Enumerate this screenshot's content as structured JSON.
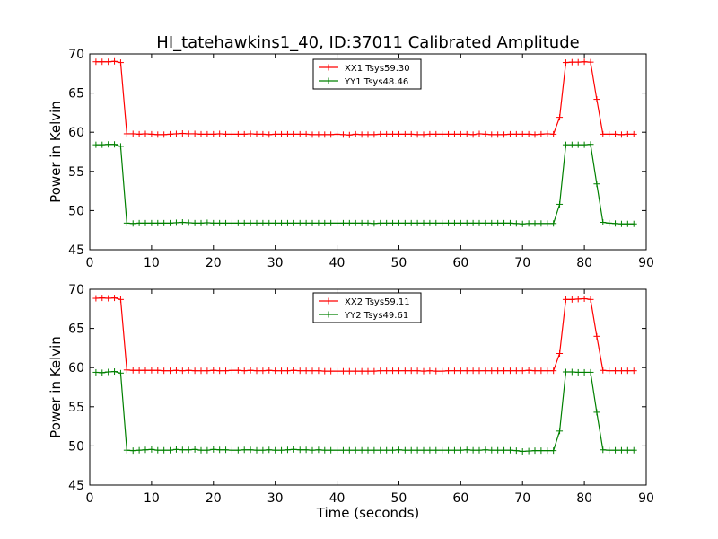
{
  "figure": {
    "title": "HI_tatehawkins1_40, ID:37011 Calibrated Amplitude",
    "xlabel": "Time (seconds)"
  },
  "chart_data": [
    {
      "type": "line",
      "title": "HI_tatehawkins1_40, ID:37011 Calibrated Amplitude",
      "xlabel": "",
      "ylabel": "Power in Kelvin",
      "xlim": [
        0,
        90
      ],
      "ylim": [
        45,
        70
      ],
      "xticks": [
        0,
        10,
        20,
        30,
        40,
        50,
        60,
        70,
        80,
        90
      ],
      "yticks": [
        45,
        50,
        55,
        60,
        65,
        70
      ],
      "grid": false,
      "legend_position": "top-center",
      "marker": "+",
      "x": [
        1,
        2,
        3,
        4,
        5,
        6,
        7,
        8,
        9,
        10,
        11,
        12,
        13,
        14,
        15,
        16,
        17,
        18,
        19,
        20,
        21,
        22,
        23,
        24,
        25,
        26,
        27,
        28,
        29,
        30,
        31,
        32,
        33,
        34,
        35,
        36,
        37,
        38,
        39,
        40,
        41,
        42,
        43,
        44,
        45,
        46,
        47,
        48,
        49,
        50,
        51,
        52,
        53,
        54,
        55,
        56,
        57,
        58,
        59,
        60,
        61,
        62,
        63,
        64,
        65,
        66,
        67,
        68,
        69,
        70,
        71,
        72,
        73,
        74,
        75,
        76,
        77,
        78,
        79,
        80,
        81,
        82,
        83,
        84,
        85,
        86,
        87,
        88
      ],
      "series": [
        {
          "name": "XX1 Tsys59.30",
          "color": "#ff0000",
          "values": [
            69.0,
            69.0,
            69.0,
            69.05,
            68.9,
            59.8,
            59.8,
            59.75,
            59.8,
            59.75,
            59.7,
            59.7,
            59.75,
            59.8,
            59.85,
            59.8,
            59.8,
            59.75,
            59.75,
            59.75,
            59.8,
            59.75,
            59.75,
            59.75,
            59.75,
            59.8,
            59.75,
            59.75,
            59.7,
            59.75,
            59.75,
            59.75,
            59.75,
            59.75,
            59.75,
            59.7,
            59.7,
            59.7,
            59.7,
            59.75,
            59.7,
            59.65,
            59.75,
            59.7,
            59.7,
            59.7,
            59.75,
            59.75,
            59.75,
            59.75,
            59.75,
            59.75,
            59.7,
            59.7,
            59.75,
            59.75,
            59.75,
            59.75,
            59.75,
            59.75,
            59.75,
            59.7,
            59.8,
            59.75,
            59.7,
            59.7,
            59.7,
            59.75,
            59.75,
            59.75,
            59.75,
            59.7,
            59.75,
            59.8,
            59.75,
            61.9,
            68.9,
            68.95,
            68.95,
            69.0,
            68.95,
            64.2,
            59.75,
            59.75,
            59.75,
            59.7,
            59.75,
            59.75
          ]
        },
        {
          "name": "YY1 Tsys48.46",
          "color": "#008000",
          "values": [
            58.4,
            58.4,
            58.45,
            58.45,
            58.2,
            48.4,
            48.35,
            48.4,
            48.4,
            48.4,
            48.4,
            48.4,
            48.4,
            48.45,
            48.5,
            48.45,
            48.4,
            48.4,
            48.45,
            48.4,
            48.4,
            48.4,
            48.4,
            48.4,
            48.4,
            48.4,
            48.4,
            48.4,
            48.4,
            48.4,
            48.4,
            48.4,
            48.4,
            48.4,
            48.4,
            48.4,
            48.4,
            48.4,
            48.4,
            48.4,
            48.4,
            48.4,
            48.4,
            48.4,
            48.4,
            48.35,
            48.4,
            48.4,
            48.4,
            48.4,
            48.4,
            48.4,
            48.4,
            48.4,
            48.4,
            48.4,
            48.4,
            48.4,
            48.4,
            48.4,
            48.4,
            48.4,
            48.4,
            48.4,
            48.4,
            48.4,
            48.4,
            48.4,
            48.35,
            48.3,
            48.35,
            48.35,
            48.35,
            48.35,
            48.35,
            50.8,
            58.4,
            58.4,
            58.4,
            58.4,
            58.45,
            53.4,
            48.5,
            48.4,
            48.35,
            48.3,
            48.3,
            48.3
          ]
        }
      ]
    },
    {
      "type": "line",
      "title": "",
      "xlabel": "Time (seconds)",
      "ylabel": "Power in Kelvin",
      "xlim": [
        0,
        90
      ],
      "ylim": [
        45,
        70
      ],
      "xticks": [
        0,
        10,
        20,
        30,
        40,
        50,
        60,
        70,
        80,
        90
      ],
      "yticks": [
        45,
        50,
        55,
        60,
        65,
        70
      ],
      "grid": false,
      "legend_position": "top-center",
      "marker": "+",
      "x": [
        1,
        2,
        3,
        4,
        5,
        6,
        7,
        8,
        9,
        10,
        11,
        12,
        13,
        14,
        15,
        16,
        17,
        18,
        19,
        20,
        21,
        22,
        23,
        24,
        25,
        26,
        27,
        28,
        29,
        30,
        31,
        32,
        33,
        34,
        35,
        36,
        37,
        38,
        39,
        40,
        41,
        42,
        43,
        44,
        45,
        46,
        47,
        48,
        49,
        50,
        51,
        52,
        53,
        54,
        55,
        56,
        57,
        58,
        59,
        60,
        61,
        62,
        63,
        64,
        65,
        66,
        67,
        68,
        69,
        70,
        71,
        72,
        73,
        74,
        75,
        76,
        77,
        78,
        79,
        80,
        81,
        82,
        83,
        84,
        85,
        86,
        87,
        88
      ],
      "series": [
        {
          "name": "XX2 Tsys59.11",
          "color": "#ff0000",
          "values": [
            68.85,
            68.9,
            68.85,
            68.9,
            68.7,
            59.7,
            59.65,
            59.65,
            59.65,
            59.65,
            59.65,
            59.6,
            59.6,
            59.65,
            59.6,
            59.65,
            59.6,
            59.6,
            59.6,
            59.65,
            59.6,
            59.6,
            59.65,
            59.65,
            59.6,
            59.65,
            59.6,
            59.6,
            59.65,
            59.6,
            59.6,
            59.6,
            59.65,
            59.6,
            59.6,
            59.6,
            59.6,
            59.55,
            59.55,
            59.55,
            59.55,
            59.55,
            59.55,
            59.55,
            59.55,
            59.55,
            59.6,
            59.6,
            59.6,
            59.6,
            59.6,
            59.6,
            59.6,
            59.55,
            59.6,
            59.55,
            59.55,
            59.6,
            59.6,
            59.6,
            59.6,
            59.6,
            59.6,
            59.6,
            59.6,
            59.6,
            59.6,
            59.6,
            59.6,
            59.6,
            59.65,
            59.6,
            59.6,
            59.6,
            59.6,
            61.8,
            68.7,
            68.7,
            68.75,
            68.8,
            68.7,
            64.0,
            59.65,
            59.6,
            59.6,
            59.6,
            59.6,
            59.6
          ]
        },
        {
          "name": "YY2 Tsys49.61",
          "color": "#008000",
          "values": [
            59.4,
            59.35,
            59.45,
            59.5,
            59.3,
            49.45,
            49.4,
            49.45,
            49.5,
            49.55,
            49.45,
            49.45,
            49.45,
            49.55,
            49.5,
            49.5,
            49.55,
            49.45,
            49.45,
            49.55,
            49.5,
            49.5,
            49.45,
            49.45,
            49.5,
            49.5,
            49.45,
            49.45,
            49.5,
            49.45,
            49.45,
            49.5,
            49.55,
            49.5,
            49.5,
            49.45,
            49.5,
            49.45,
            49.45,
            49.45,
            49.45,
            49.45,
            49.45,
            49.45,
            49.45,
            49.45,
            49.45,
            49.45,
            49.45,
            49.5,
            49.45,
            49.45,
            49.45,
            49.45,
            49.45,
            49.45,
            49.45,
            49.45,
            49.45,
            49.45,
            49.5,
            49.45,
            49.45,
            49.5,
            49.45,
            49.45,
            49.45,
            49.45,
            49.4,
            49.3,
            49.35,
            49.4,
            49.4,
            49.4,
            49.4,
            51.9,
            59.45,
            59.45,
            59.4,
            59.4,
            59.4,
            54.3,
            49.5,
            49.45,
            49.45,
            49.45,
            49.45,
            49.45
          ]
        }
      ]
    }
  ]
}
